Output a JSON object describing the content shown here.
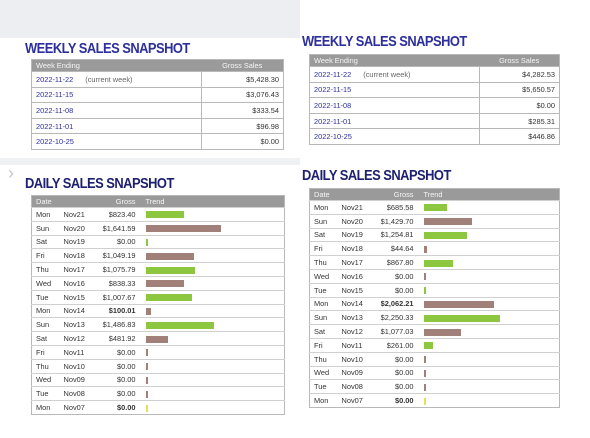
{
  "colors": {
    "green": "#8dc63f",
    "brown": "#a08078",
    "yellow": "#e6e05a",
    "title": "#2d2f9c"
  },
  "weekly_left": {
    "title": "WEEKLY SALES SNAPSHOT",
    "headers": [
      "Week Ending",
      "Gross Sales"
    ],
    "rows": [
      {
        "date": "2022-11-22",
        "note": "(current week)",
        "gross": "$5,428.30"
      },
      {
        "date": "2022-11-15",
        "note": "",
        "gross": "$3,076.43"
      },
      {
        "date": "2022-11-08",
        "note": "",
        "gross": "$333.54"
      },
      {
        "date": "2022-11-01",
        "note": "",
        "gross": "$96.98"
      },
      {
        "date": "2022-10-25",
        "note": "",
        "gross": "$0.00"
      }
    ]
  },
  "weekly_right": {
    "title": "WEEKLY SALES SNAPSHOT",
    "headers": [
      "Week Ending",
      "Gross Sales"
    ],
    "rows": [
      {
        "date": "2022-11-22",
        "note": "(current week)",
        "gross": "$4,282.53"
      },
      {
        "date": "2022-11-15",
        "note": "",
        "gross": "$5,650.57"
      },
      {
        "date": "2022-11-08",
        "note": "",
        "gross": "$0.00"
      },
      {
        "date": "2022-11-01",
        "note": "",
        "gross": "$285.31"
      },
      {
        "date": "2022-10-25",
        "note": "",
        "gross": "$446.86"
      }
    ]
  },
  "daily_left": {
    "title": "DAILY SALES SNAPSHOT",
    "headers": [
      "Date",
      "Gross",
      "Trend"
    ],
    "rows": [
      {
        "day": "Mon",
        "date": "Nov21",
        "gross": "$823.40",
        "value": 823.4,
        "color": "green",
        "bold": false
      },
      {
        "day": "Sun",
        "date": "Nov20",
        "gross": "$1,641.59",
        "value": 1641.59,
        "color": "brown",
        "bold": false
      },
      {
        "day": "Sat",
        "date": "Nov19",
        "gross": "$0.00",
        "value": 0,
        "color": "green",
        "bold": false
      },
      {
        "day": "Fri",
        "date": "Nov18",
        "gross": "$1,049.19",
        "value": 1049.19,
        "color": "brown",
        "bold": false
      },
      {
        "day": "Thu",
        "date": "Nov17",
        "gross": "$1,075.79",
        "value": 1075.79,
        "color": "green",
        "bold": false
      },
      {
        "day": "Wed",
        "date": "Nov16",
        "gross": "$838.33",
        "value": 838.33,
        "color": "brown",
        "bold": false
      },
      {
        "day": "Tue",
        "date": "Nov15",
        "gross": "$1,007.67",
        "value": 1007.67,
        "color": "green",
        "bold": false
      },
      {
        "day": "Mon",
        "date": "Nov14",
        "gross": "$100.01",
        "value": 100.01,
        "color": "brown",
        "bold": true
      },
      {
        "day": "Sun",
        "date": "Nov13",
        "gross": "$1,486.83",
        "value": 1486.83,
        "color": "green",
        "bold": false
      },
      {
        "day": "Sat",
        "date": "Nov12",
        "gross": "$481.92",
        "value": 481.92,
        "color": "brown",
        "bold": false
      },
      {
        "day": "Fri",
        "date": "Nov11",
        "gross": "$0.00",
        "value": 0,
        "color": "brown",
        "bold": false
      },
      {
        "day": "Thu",
        "date": "Nov10",
        "gross": "$0.00",
        "value": 0,
        "color": "brown",
        "bold": false
      },
      {
        "day": "Wed",
        "date": "Nov09",
        "gross": "$0.00",
        "value": 0,
        "color": "brown",
        "bold": false
      },
      {
        "day": "Tue",
        "date": "Nov08",
        "gross": "$0.00",
        "value": 0,
        "color": "brown",
        "bold": false
      },
      {
        "day": "Mon",
        "date": "Nov07",
        "gross": "$0.00",
        "value": 0,
        "color": "yellow",
        "bold": true
      }
    ]
  },
  "daily_right": {
    "title": "DAILY SALES SNAPSHOT",
    "headers": [
      "Date",
      "Gross",
      "Trend"
    ],
    "rows": [
      {
        "day": "Mon",
        "date": "Nov21",
        "gross": "$685.58",
        "value": 685.58,
        "color": "green",
        "bold": false
      },
      {
        "day": "Sun",
        "date": "Nov20",
        "gross": "$1,429.70",
        "value": 1429.7,
        "color": "brown",
        "bold": false
      },
      {
        "day": "Sat",
        "date": "Nov19",
        "gross": "$1,254.81",
        "value": 1254.81,
        "color": "green",
        "bold": false
      },
      {
        "day": "Fri",
        "date": "Nov18",
        "gross": "$44.64",
        "value": 44.64,
        "color": "brown",
        "bold": false
      },
      {
        "day": "Thu",
        "date": "Nov17",
        "gross": "$867.80",
        "value": 867.8,
        "color": "green",
        "bold": false
      },
      {
        "day": "Wed",
        "date": "Nov16",
        "gross": "$0.00",
        "value": 0,
        "color": "brown",
        "bold": false
      },
      {
        "day": "Tue",
        "date": "Nov15",
        "gross": "$0.00",
        "value": 0,
        "color": "green",
        "bold": false
      },
      {
        "day": "Mon",
        "date": "Nov14",
        "gross": "$2,062.21",
        "value": 2062.21,
        "color": "brown",
        "bold": true
      },
      {
        "day": "Sun",
        "date": "Nov13",
        "gross": "$2,250.33",
        "value": 2250.33,
        "color": "green",
        "bold": false
      },
      {
        "day": "Sat",
        "date": "Nov12",
        "gross": "$1,077.03",
        "value": 1077.03,
        "color": "brown",
        "bold": false
      },
      {
        "day": "Fri",
        "date": "Nov11",
        "gross": "$261.00",
        "value": 261.0,
        "color": "green",
        "bold": false
      },
      {
        "day": "Thu",
        "date": "Nov10",
        "gross": "$0.00",
        "value": 0,
        "color": "brown",
        "bold": false
      },
      {
        "day": "Wed",
        "date": "Nov09",
        "gross": "$0.00",
        "value": 0,
        "color": "brown",
        "bold": false
      },
      {
        "day": "Tue",
        "date": "Nov08",
        "gross": "$0.00",
        "value": 0,
        "color": "brown",
        "bold": false
      },
      {
        "day": "Mon",
        "date": "Nov07",
        "gross": "$0.00",
        "value": 0,
        "color": "yellow",
        "bold": true
      }
    ]
  }
}
